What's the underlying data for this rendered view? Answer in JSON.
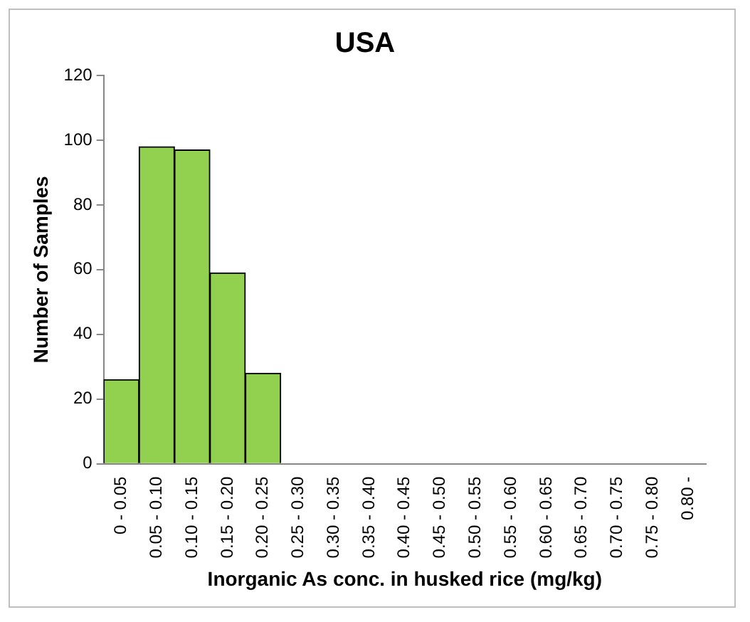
{
  "chart_data": {
    "type": "bar",
    "title": "USA",
    "xlabel": "Inorganic As conc. in husked rice (mg/kg)",
    "ylabel": "Number of Samples",
    "categories": [
      "0 - 0.05",
      "0.05 - 0.10",
      "0.10 - 0.15",
      "0.15 - 0.20",
      "0.20 - 0.25",
      "0.25 - 0.30",
      "0.30 - 0.35",
      "0.35 - 0.40",
      "0.40 - 0.45",
      "0.45 - 0.50",
      "0.50 - 0.55",
      "0.55 - 0.60",
      "0.60 - 0.65",
      "0.65 - 0.70",
      "0.70 - 0.75",
      "0.75 - 0.80",
      "0.80 -"
    ],
    "values": [
      26,
      98,
      97,
      59,
      28,
      0,
      0,
      0,
      0,
      0,
      0,
      0,
      0,
      0,
      0,
      0,
      0
    ],
    "color": "#92d050",
    "ylim": [
      0,
      120
    ],
    "yticks": [
      0,
      20,
      40,
      60,
      80,
      100,
      120
    ],
    "grid": false,
    "legend": false
  }
}
